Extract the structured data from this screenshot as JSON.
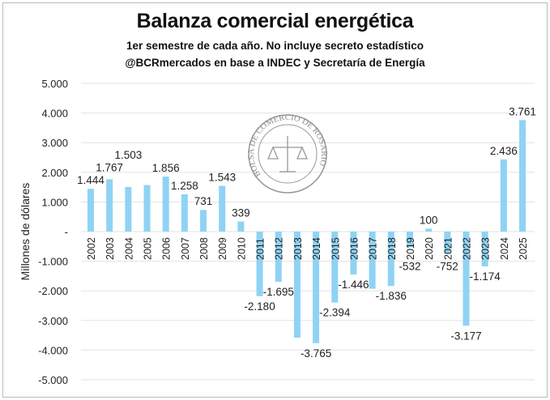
{
  "chart_data": {
    "type": "bar",
    "title": "Balanza comercial energética",
    "subtitle": "1er semestre de cada año. No incluye secreto estadístico",
    "source": "@BCRmercados en base a INDEC y Secretaría de Energía",
    "ylabel": "Millones de dólares",
    "xlabel": "",
    "ylim": [
      -5000,
      5000
    ],
    "yticks": [
      5000,
      4000,
      3000,
      2000,
      1000,
      0,
      -1000,
      -2000,
      -3000,
      -4000,
      -5000
    ],
    "ytick_labels": [
      "5.000",
      "4.000",
      "3.000",
      "2.000",
      "1.000",
      "-",
      "-1.000",
      "-2.000",
      "-3.000",
      "-4.000",
      "-5.000"
    ],
    "grid": true,
    "bar_color": "#8fd3f4",
    "categories": [
      "2002",
      "2003",
      "2004",
      "2005",
      "2006",
      "2007",
      "2008",
      "2009",
      "2010",
      "2011",
      "2012",
      "2013",
      "2014",
      "2015",
      "2016",
      "2017",
      "2018",
      "2019",
      "2020",
      "2021",
      "2022",
      "2023",
      "2024",
      "2025"
    ],
    "values": [
      1444,
      1767,
      1503,
      1570,
      1856,
      1258,
      731,
      1543,
      339,
      -2180,
      -1695,
      -3580,
      -3765,
      -2394,
      -1446,
      -1930,
      -1836,
      -532,
      100,
      -752,
      -3177,
      -1174,
      2436,
      3761
    ],
    "data_labels": [
      "1.444",
      "1.767",
      "1.503",
      null,
      "1.856",
      "1.258",
      "731",
      "1.543",
      "339",
      "-2.180",
      "-1.695",
      null,
      "-3.765",
      "-2.394",
      "-1.446",
      null,
      "-1.836",
      "-532",
      "100",
      "-752",
      "-3.177",
      "-1.174",
      "2.436",
      "3.761"
    ]
  },
  "watermark": "BOLSA DE COMERCIO DE ROSARIO"
}
